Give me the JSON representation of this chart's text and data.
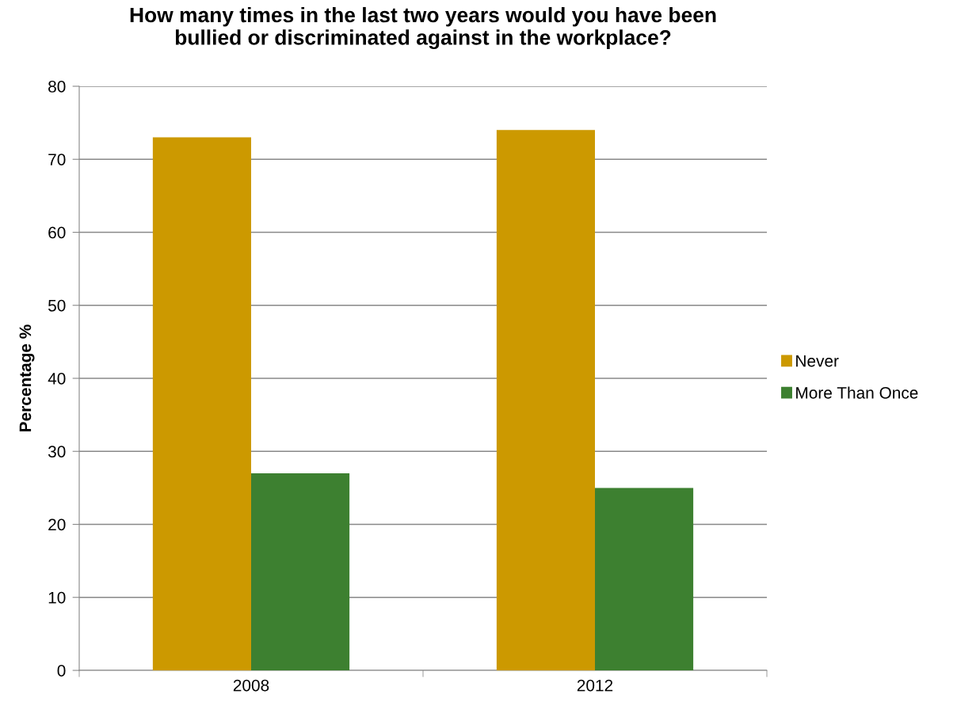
{
  "chart_data": {
    "type": "bar",
    "title": "How many times in the last two years would you have been\nbullied or discriminated against in the workplace?",
    "ylabel": "Percentage %",
    "categories": [
      "2008",
      "2012"
    ],
    "series": [
      {
        "name": "Never",
        "color": "#cc9900",
        "values": [
          73,
          74
        ]
      },
      {
        "name": "More Than Once",
        "color": "#3d8030",
        "values": [
          27,
          25
        ]
      }
    ],
    "ylim": [
      0,
      80
    ],
    "yticks": [
      0,
      10,
      20,
      30,
      40,
      50,
      60,
      70,
      80
    ],
    "grid": "y",
    "legend": "right"
  }
}
